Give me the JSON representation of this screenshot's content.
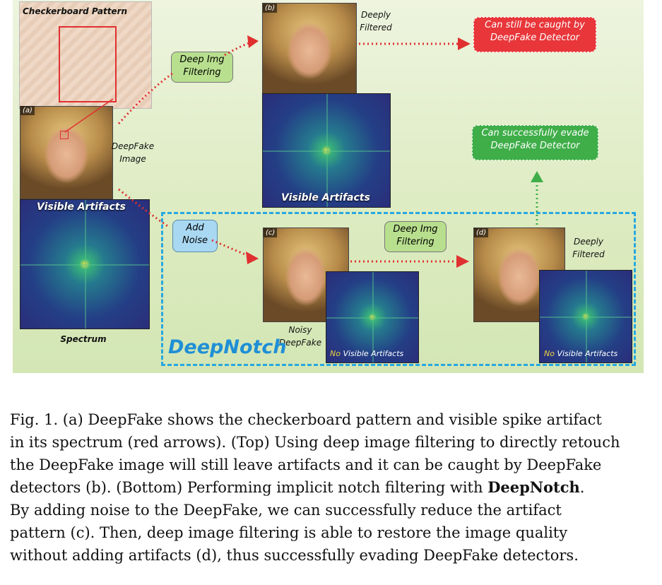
{
  "figure": {
    "checker_label": "Checkerboard Pattern",
    "panel_a_tag": "(a)",
    "panel_b_tag": "(b)",
    "panel_c_tag": "(c)",
    "panel_d_tag": "(d)",
    "deepfake_image_label": "DeepFake Image",
    "visible_artifacts_a": "Visible Artifacts",
    "spectrum_label": "Spectrum",
    "deep_filter_box_top": "Deep Img Filtering",
    "deeply_filtered_top": "Deeply Filtered",
    "caught_box": "Can still be caught by DeepFake Detector",
    "visible_artifacts_b": "Visible Artifacts",
    "evade_box": "Can successfully evade DeepFake Detector",
    "add_noise_box": "Add Noise",
    "deep_filter_box_bottom": "Deep Img Filtering",
    "noisy_deepfake_label": "Noisy DeepFake",
    "deeply_filtered_bottom": "Deeply Filtered",
    "deepnotch_title": "DeepNotch",
    "no_word": "No",
    "no_visible_artifacts": "Visible Artifacts",
    "colors": {
      "red_box": "#e8363a",
      "green_box": "#3fae49",
      "blue_box": "#a9d8f2",
      "filter_box": "#b8df8e",
      "dashed_border": "#27a8e0",
      "deepnotch_text": "#1f8fd6"
    }
  },
  "caption": {
    "line1": "Fig. 1.  (a) DeepFake shows the checkerboard pattern and visible spike artifact",
    "line2": "in its spectrum (red arrows). (Top) Using deep image filtering to directly retouch",
    "line3": "the DeepFake image will still leave artifacts and it can be caught by DeepFake",
    "line4_pre": "detectors (b). (Bottom) Performing implicit notch filtering with ",
    "line4_bold": "DeepNotch",
    "line4_post": ".",
    "line5": "By adding noise to the DeepFake, we can successfully reduce the artifact",
    "line6": "pattern (c). Then, deep image filtering is able to restore the image quality",
    "line7": "without adding artifacts (d), thus successfully evading DeepFake detectors."
  }
}
